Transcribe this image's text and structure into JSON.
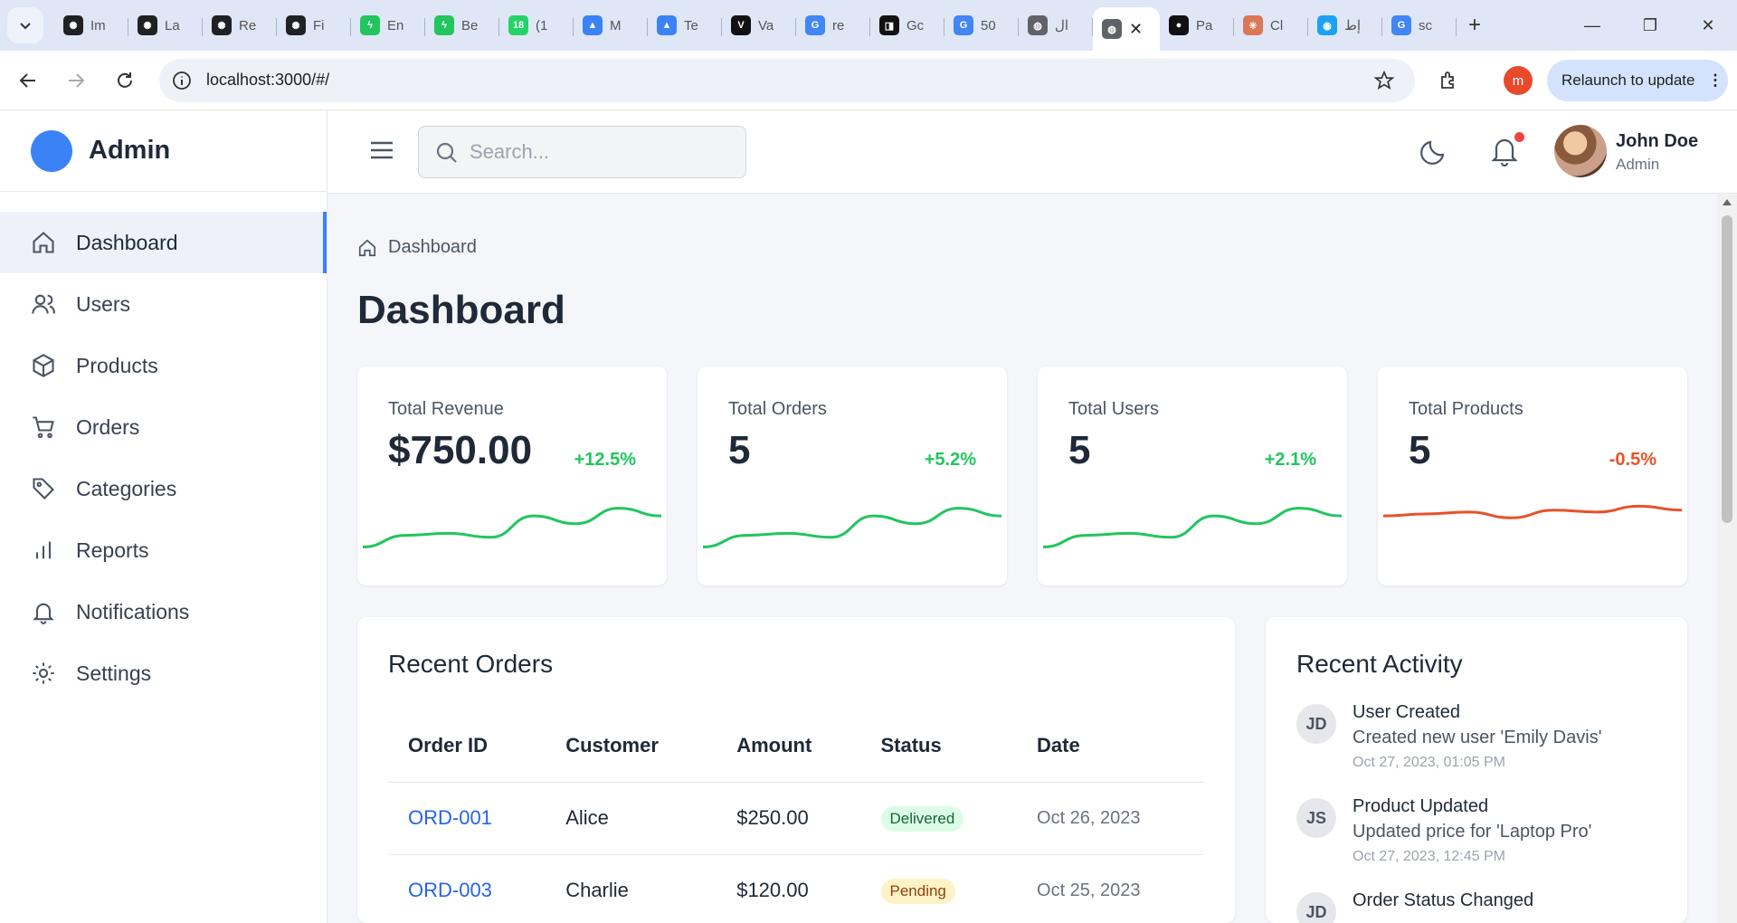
{
  "browser": {
    "tabs": [
      {
        "title": "Im",
        "icon": "openai-icon",
        "color": "#202124"
      },
      {
        "title": "La",
        "icon": "openai-icon",
        "color": "#202124"
      },
      {
        "title": "Re",
        "icon": "openai-icon",
        "color": "#202124"
      },
      {
        "title": "Fi",
        "icon": "openai-icon",
        "color": "#202124"
      },
      {
        "title": "En",
        "icon": "bolt-icon",
        "color": "#22c55e"
      },
      {
        "title": "Be",
        "icon": "bolt-icon",
        "color": "#22c55e"
      },
      {
        "title": "(1",
        "icon": "whatsapp-icon",
        "color": "#25d366"
      },
      {
        "title": "M",
        "icon": "metatrader-icon",
        "color": "#3b82f6"
      },
      {
        "title": "Te",
        "icon": "metatrader-icon",
        "color": "#3b82f6"
      },
      {
        "title": "Va",
        "icon": "vantage-icon",
        "color": "#111111"
      },
      {
        "title": "re",
        "icon": "google-icon",
        "color": "#4285f4"
      },
      {
        "title": "Gc",
        "icon": "square-icon",
        "color": "#111111"
      },
      {
        "title": "50",
        "icon": "google-icon",
        "color": "#4285f4"
      },
      {
        "title": "ال",
        "icon": "globe-icon",
        "color": "#5f6368"
      }
    ],
    "active_tab": {
      "icon": "globe-icon",
      "close": "✕"
    },
    "tabs_after": [
      {
        "title": "Pa",
        "icon": "github-icon",
        "color": "#111111"
      },
      {
        "title": "Cl",
        "icon": "claude-icon",
        "color": "#d97757"
      },
      {
        "title": "إط",
        "icon": "circle-icon",
        "color": "#1da1f2"
      },
      {
        "title": "sc",
        "icon": "google-icon",
        "color": "#4285f4"
      }
    ],
    "new_tab": "+",
    "url": "localhost:3000/#/",
    "profile_initial": "m",
    "relaunch_label": "Relaunch to update"
  },
  "app": {
    "brand": "Admin",
    "nav": [
      {
        "label": "Dashboard",
        "icon": "home-icon",
        "active": true
      },
      {
        "label": "Users",
        "icon": "users-icon"
      },
      {
        "label": "Products",
        "icon": "box-icon"
      },
      {
        "label": "Orders",
        "icon": "cart-icon"
      },
      {
        "label": "Categories",
        "icon": "tag-icon"
      },
      {
        "label": "Reports",
        "icon": "bar-chart-icon"
      },
      {
        "label": "Notifications",
        "icon": "bell-icon"
      },
      {
        "label": "Settings",
        "icon": "gear-icon"
      }
    ],
    "search_placeholder": "Search...",
    "user": {
      "name": "John Doe",
      "role": "Admin"
    },
    "breadcrumb": "Dashboard",
    "title": "Dashboard",
    "stats": [
      {
        "label": "Total Revenue",
        "value": "$750.00",
        "delta": "+12.5%",
        "trend": "up",
        "color": "#22c55e",
        "spark": [
          8,
          20,
          22,
          18,
          40,
          32,
          48,
          40
        ]
      },
      {
        "label": "Total Orders",
        "value": "5",
        "delta": "+5.2%",
        "trend": "up",
        "color": "#22c55e",
        "spark": [
          8,
          20,
          22,
          18,
          40,
          32,
          48,
          40
        ]
      },
      {
        "label": "Total Users",
        "value": "5",
        "delta": "+2.1%",
        "trend": "up",
        "color": "#22c55e",
        "spark": [
          8,
          20,
          22,
          18,
          40,
          32,
          48,
          40
        ]
      },
      {
        "label": "Total Products",
        "value": "5",
        "delta": "-0.5%",
        "trend": "down",
        "color": "#e8512a",
        "spark": [
          40,
          42,
          44,
          38,
          46,
          44,
          50,
          46
        ]
      }
    ],
    "orders": {
      "title": "Recent Orders",
      "columns": [
        "Order ID",
        "Customer",
        "Amount",
        "Status",
        "Date"
      ],
      "rows": [
        {
          "id": "ORD-001",
          "customer": "Alice",
          "amount": "$250.00",
          "status": "Delivered",
          "status_kind": "delivered",
          "date": "Oct 26, 2023"
        },
        {
          "id": "ORD-003",
          "customer": "Charlie",
          "amount": "$120.00",
          "status": "Pending",
          "status_kind": "pending",
          "date": "Oct 25, 2023"
        }
      ]
    },
    "activity": {
      "title": "Recent Activity",
      "items": [
        {
          "initials": "JD",
          "title": "User Created",
          "desc": "Created new user 'Emily Davis'",
          "time": "Oct 27, 2023, 01:05 PM"
        },
        {
          "initials": "JS",
          "title": "Product Updated",
          "desc": "Updated price for 'Laptop Pro'",
          "time": "Oct 27, 2023, 12:45 PM"
        },
        {
          "initials": "JD",
          "title": "Order Status Changed",
          "desc": "",
          "time": ""
        }
      ]
    }
  }
}
